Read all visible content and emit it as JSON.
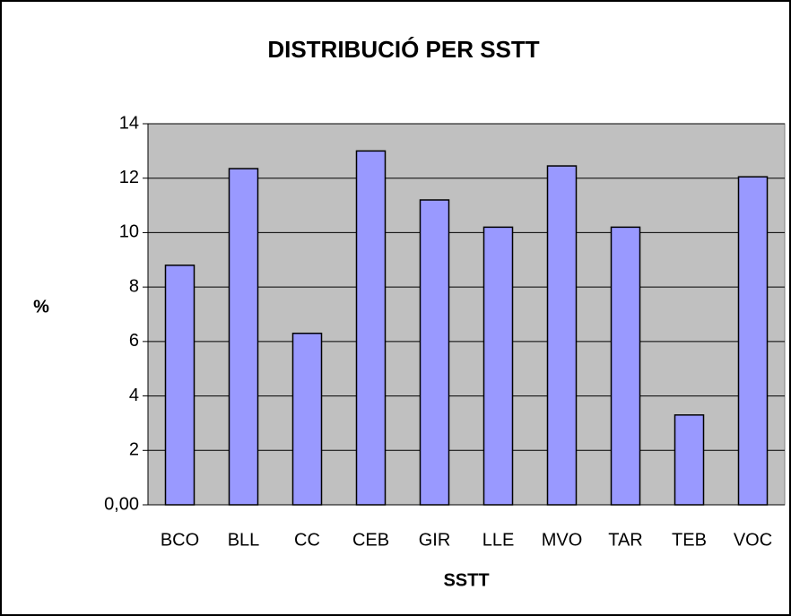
{
  "chart_data": {
    "type": "bar",
    "title": "DISTRIBUCIÓ  PER SSTT",
    "x_label": "SSTT",
    "y_label": "%",
    "categories": [
      "BCO",
      "BLL",
      "CC",
      "CEB",
      "GIR",
      "LLE",
      "MVO",
      "TAR",
      "TEB",
      "VOC"
    ],
    "values": [
      8.8,
      12.35,
      6.3,
      13.0,
      11.2,
      10.2,
      12.45,
      10.2,
      3.3,
      12.05
    ],
    "color": "#9999ff",
    "plot_background": "#c0c0c0",
    "ylim": [
      0,
      14
    ],
    "yticks": [
      {
        "value": 0,
        "label": "0,00"
      },
      2,
      4,
      6,
      8,
      10,
      12,
      14
    ],
    "grid": true
  }
}
